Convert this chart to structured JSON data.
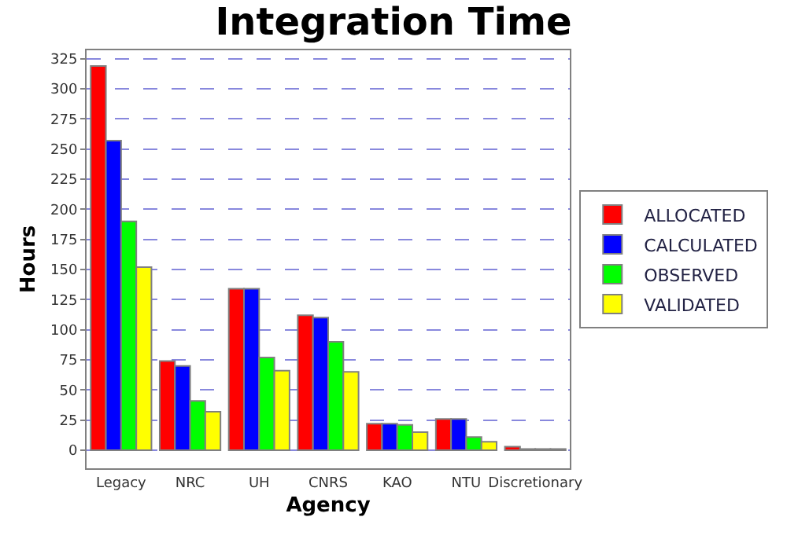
{
  "chart_data": {
    "type": "bar",
    "title": "Integration Time",
    "xlabel": "Agency",
    "ylabel": "Hours",
    "categories": [
      "Legacy",
      "NRC",
      "UH",
      "CNRS",
      "KAO",
      "NTU",
      "Discretionary"
    ],
    "series": [
      {
        "name": "ALLOCATED",
        "color": "#ff0000",
        "values": [
          319,
          74,
          134,
          112,
          22,
          26,
          3
        ]
      },
      {
        "name": "CALCULATED",
        "color": "#0000ff",
        "values": [
          257,
          70,
          134,
          110,
          22,
          26,
          1
        ]
      },
      {
        "name": "OBSERVED",
        "color": "#00ff00",
        "values": [
          190,
          41,
          77,
          90,
          21,
          11,
          1
        ]
      },
      {
        "name": "VALIDATED",
        "color": "#ffff00",
        "values": [
          152,
          32,
          66,
          65,
          15,
          7,
          1
        ]
      }
    ],
    "ylim": [
      -15,
      332
    ],
    "yticks": [
      0,
      25,
      50,
      75,
      100,
      125,
      150,
      175,
      200,
      225,
      250,
      275,
      300,
      325
    ],
    "grid": "y",
    "legend": "right"
  }
}
